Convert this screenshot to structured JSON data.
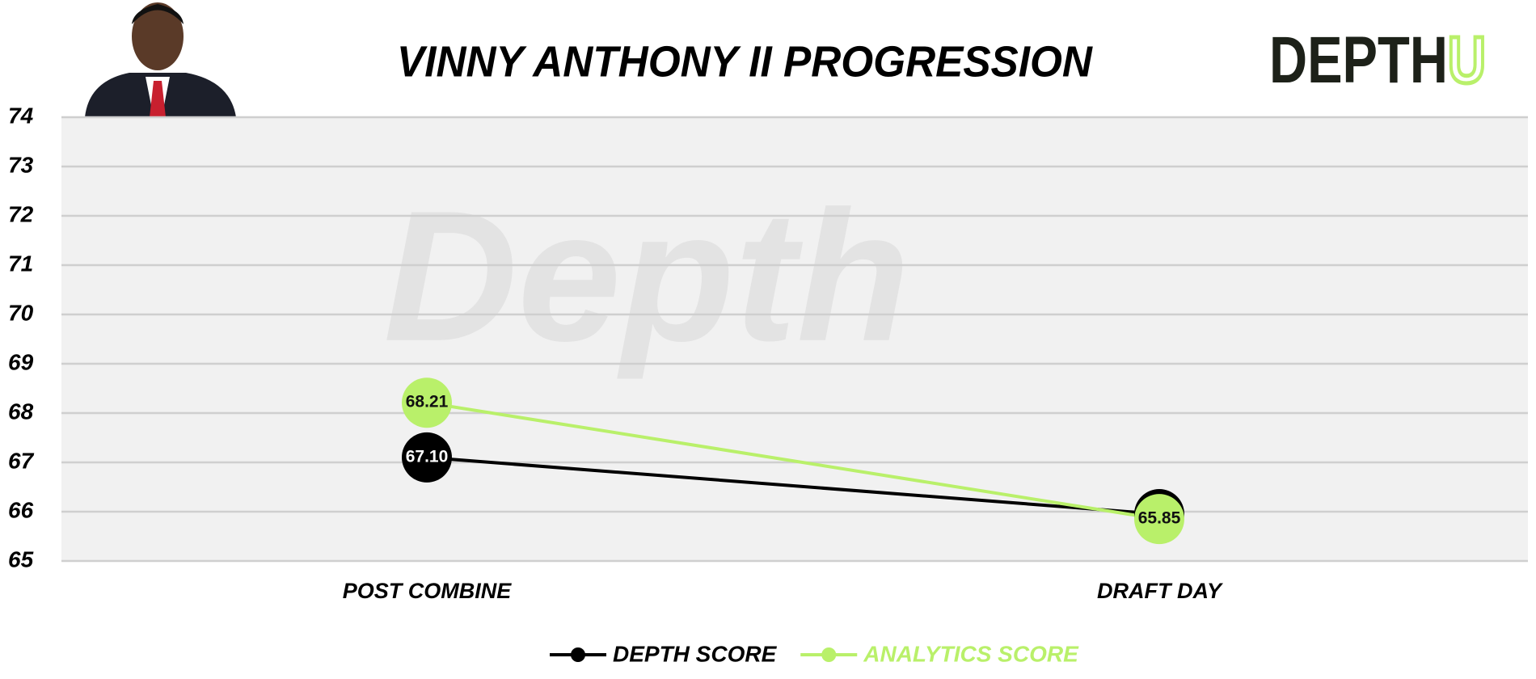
{
  "chart_data": {
    "type": "line",
    "title": "VINNY ANTHONY II PROGRESSION",
    "categories": [
      "POST COMBINE",
      "DRAFT DAY"
    ],
    "series": [
      {
        "name": "DEPTH SCORE",
        "color": "#000000",
        "values": [
          67.1,
          65.95
        ],
        "value_labels": [
          "67.10",
          "65.95"
        ]
      },
      {
        "name": "ANALYTICS SCORE",
        "color": "#b9f06a",
        "values": [
          68.21,
          65.85
        ],
        "value_labels": [
          "68.21",
          "65.85"
        ]
      }
    ],
    "ylim": [
      65,
      74
    ],
    "yticks": [
      65,
      66,
      67,
      68,
      69,
      70,
      71,
      72,
      73,
      74
    ],
    "grid": true,
    "legend": "bottom"
  },
  "logo": {
    "main": "DEPTH",
    "accent": "U"
  },
  "watermark": "Depth"
}
